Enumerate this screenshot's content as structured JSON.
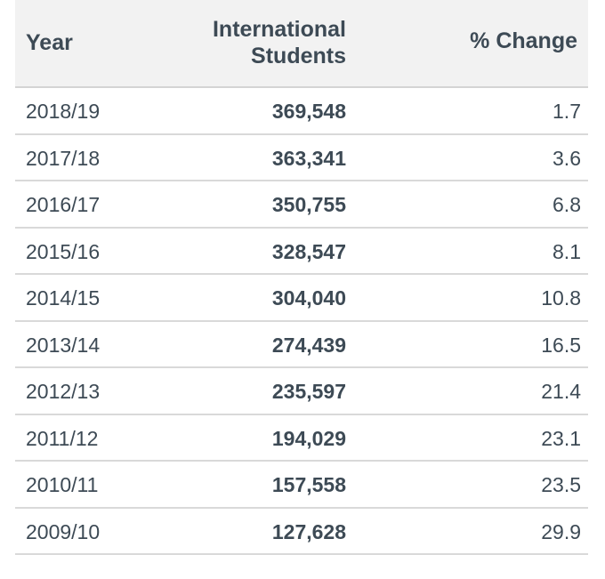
{
  "chart_data": {
    "type": "table",
    "columns": [
      "Year",
      "International Students",
      "% Change"
    ],
    "rows": [
      {
        "year": "2018/19",
        "students": "369,548",
        "change": "1.7"
      },
      {
        "year": "2017/18",
        "students": "363,341",
        "change": "3.6"
      },
      {
        "year": "2016/17",
        "students": "350,755",
        "change": "6.8"
      },
      {
        "year": "2015/16",
        "students": "328,547",
        "change": "8.1"
      },
      {
        "year": "2014/15",
        "students": "304,040",
        "change": "10.8"
      },
      {
        "year": "2013/14",
        "students": "274,439",
        "change": "16.5"
      },
      {
        "year": "2012/13",
        "students": "235,597",
        "change": "21.4"
      },
      {
        "year": "2011/12",
        "students": "194,029",
        "change": "23.1"
      },
      {
        "year": "2010/11",
        "students": "157,558",
        "change": "23.5"
      },
      {
        "year": "2009/10",
        "students": "127,628",
        "change": "29.9"
      }
    ]
  },
  "header": {
    "year": "Year",
    "students_line1": "International",
    "students_line2": "Students",
    "change": "% Change"
  },
  "colors": {
    "header_bg": "#f2f2f2",
    "text": "#3d4a55",
    "rule": "#d9d9d9"
  }
}
